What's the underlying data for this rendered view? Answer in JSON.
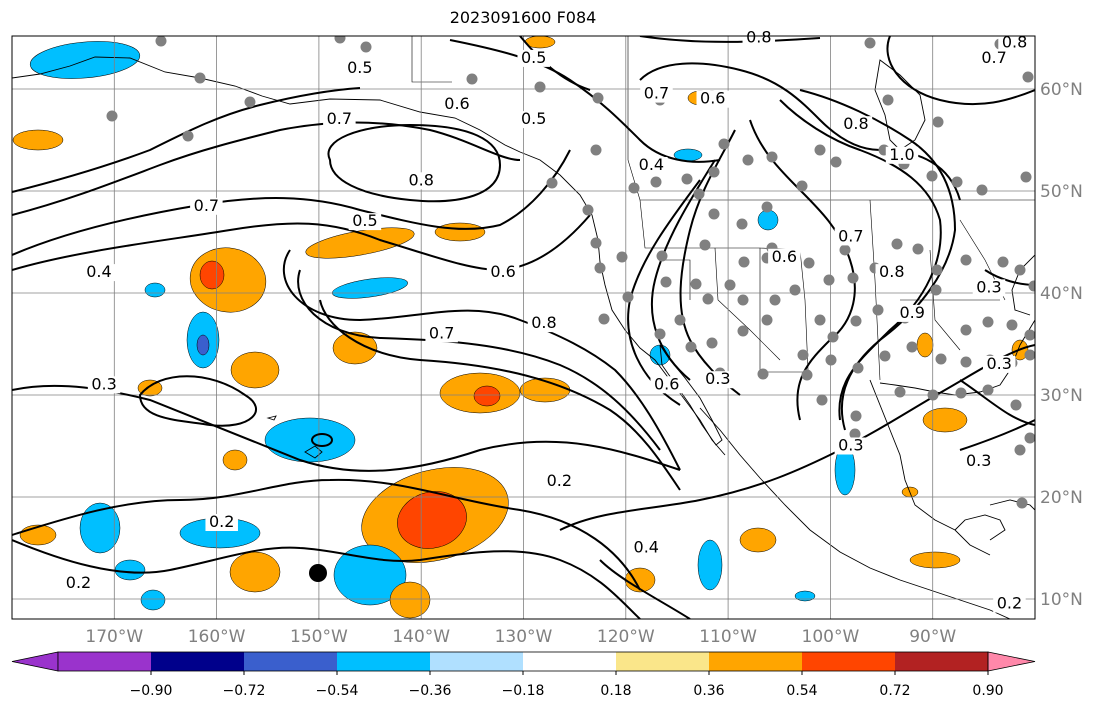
{
  "title": "2023091600 F084",
  "map": {
    "lat_labels": [
      {
        "text": "60°N",
        "lat": 60
      },
      {
        "text": "50°N",
        "lat": 50
      },
      {
        "text": "40°N",
        "lat": 40
      },
      {
        "text": "30°N",
        "lat": 30
      },
      {
        "text": "20°N",
        "lat": 20
      },
      {
        "text": "10°N",
        "lat": 10
      }
    ],
    "lon_labels": [
      {
        "text": "170°W",
        "lon": -170
      },
      {
        "text": "160°W",
        "lon": -160
      },
      {
        "text": "150°W",
        "lon": -150
      },
      {
        "text": "140°W",
        "lon": -140
      },
      {
        "text": "130°W",
        "lon": -130
      },
      {
        "text": "120°W",
        "lon": -120
      },
      {
        "text": "110°W",
        "lon": -110
      },
      {
        "text": "100°W",
        "lon": -100
      },
      {
        "text": "90°W",
        "lon": -90
      }
    ],
    "lon_range": [
      -180,
      -80
    ],
    "lat_range": [
      8,
      65
    ],
    "grid": true,
    "contour_labels": [
      {
        "text": "0.8",
        "lon": -140,
        "lat": 51
      },
      {
        "text": "0.7",
        "lon": -161,
        "lat": 48.5
      },
      {
        "text": "0.7",
        "lon": -148,
        "lat": 57
      },
      {
        "text": "0.5",
        "lon": -146,
        "lat": 62
      },
      {
        "text": "0.6",
        "lon": -136.5,
        "lat": 58.5
      },
      {
        "text": "0.5",
        "lon": -129,
        "lat": 57
      },
      {
        "text": "0.5",
        "lon": -129,
        "lat": 63
      },
      {
        "text": "0.5",
        "lon": -145.5,
        "lat": 47
      },
      {
        "text": "0.4",
        "lon": -171.5,
        "lat": 42
      },
      {
        "text": "0.6",
        "lon": -132,
        "lat": 42
      },
      {
        "text": "0.7",
        "lon": -138,
        "lat": 36
      },
      {
        "text": "0.8",
        "lon": -128,
        "lat": 37
      },
      {
        "text": "0.3",
        "lon": -171,
        "lat": 31
      },
      {
        "text": "0.2",
        "lon": -173.5,
        "lat": 11.5
      },
      {
        "text": "0.2",
        "lon": -159.5,
        "lat": 17.5
      },
      {
        "text": "0.2",
        "lon": -126.5,
        "lat": 21.5
      },
      {
        "text": "0.4",
        "lon": -118,
        "lat": 15
      },
      {
        "text": "0.3",
        "lon": -111,
        "lat": 31.5
      },
      {
        "text": "0.6",
        "lon": -116,
        "lat": 31
      },
      {
        "text": "0.4",
        "lon": -117.5,
        "lat": 52.5
      },
      {
        "text": "0.6",
        "lon": -111.5,
        "lat": 59
      },
      {
        "text": "0.7",
        "lon": -117,
        "lat": 59.5
      },
      {
        "text": "0.8",
        "lon": -107,
        "lat": 65
      },
      {
        "text": "0.7",
        "lon": -84,
        "lat": 63
      },
      {
        "text": "0.8",
        "lon": -82,
        "lat": 64.5
      },
      {
        "text": "0.8",
        "lon": -97.5,
        "lat": 56.5
      },
      {
        "text": "1.0",
        "lon": -93,
        "lat": 53.5
      },
      {
        "text": "0.6",
        "lon": -104.5,
        "lat": 43.5
      },
      {
        "text": "0.7",
        "lon": -98,
        "lat": 45.5
      },
      {
        "text": "0.8",
        "lon": -94,
        "lat": 42
      },
      {
        "text": "0.9",
        "lon": -92,
        "lat": 38
      },
      {
        "text": "0.3",
        "lon": -84.5,
        "lat": 40.5
      },
      {
        "text": "0.3",
        "lon": -83.5,
        "lat": 33
      },
      {
        "text": "0.3",
        "lon": -98,
        "lat": 25
      },
      {
        "text": "0.3",
        "lon": -85.5,
        "lat": 23.5
      },
      {
        "text": "0.2",
        "lon": -82.5,
        "lat": 9.5
      }
    ]
  },
  "colorbar": {
    "colors": [
      "#9a33cc",
      "#00008b",
      "#3a5fcd",
      "#00bfff",
      "#b0e0ff",
      "#ffffff",
      "#fae68a",
      "#ffa500",
      "#ff4500",
      "#b22222",
      "#ff88aa"
    ],
    "tick_labels": [
      "−0.90",
      "−0.72",
      "−0.54",
      "−0.36",
      "−0.18",
      "0.18",
      "0.36",
      "0.54",
      "0.72",
      "0.90"
    ]
  }
}
